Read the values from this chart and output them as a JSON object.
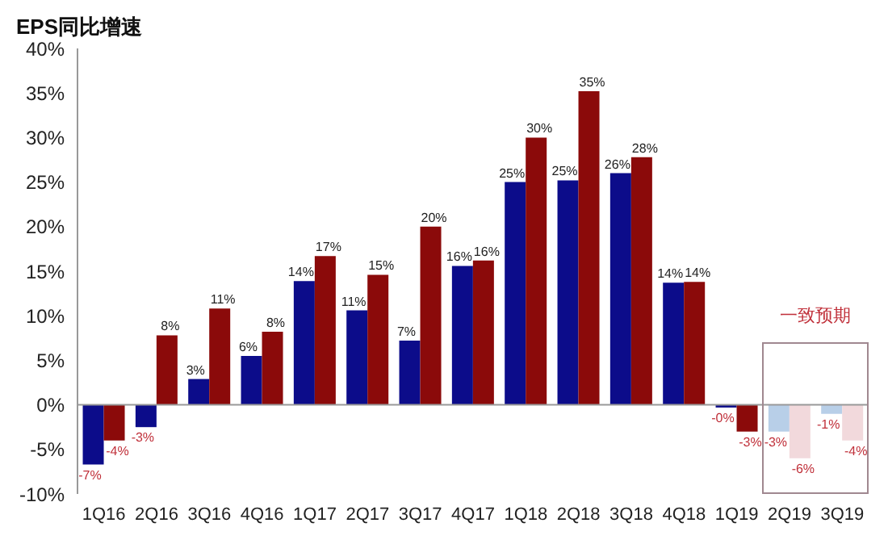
{
  "chart_data": {
    "type": "bar",
    "title": "EPS同比增速",
    "categories": [
      "1Q16",
      "2Q16",
      "3Q16",
      "4Q16",
      "1Q17",
      "2Q17",
      "3Q17",
      "4Q17",
      "1Q18",
      "2Q18",
      "3Q18",
      "4Q18",
      "1Q19",
      "2Q19",
      "3Q19"
    ],
    "series": [
      {
        "colors": [
          "#0c0c8a",
          "#0c0c8a",
          "#0c0c8a",
          "#0c0c8a",
          "#0c0c8a",
          "#0c0c8a",
          "#0c0c8a",
          "#0c0c8a",
          "#0c0c8a",
          "#0c0c8a",
          "#0c0c8a",
          "#0c0c8a",
          "#0c0c8a",
          "#b8cfe8",
          "#b8cfe8"
        ],
        "values": [
          -6.7,
          -2.5,
          2.9,
          5.5,
          13.9,
          10.6,
          7.2,
          15.6,
          25,
          25.2,
          26,
          13.7,
          -0.3,
          -3,
          -1
        ],
        "value_labels": [
          "-7%",
          "-3%",
          "3%",
          "6%",
          "14%",
          "11%",
          "7%",
          "16%",
          "25%",
          "25%",
          "26%",
          "14%",
          "-0%",
          "-3%",
          "-1%"
        ]
      },
      {
        "colors": [
          "#8b0a0a",
          "#8b0a0a",
          "#8b0a0a",
          "#8b0a0a",
          "#8b0a0a",
          "#8b0a0a",
          "#8b0a0a",
          "#8b0a0a",
          "#8b0a0a",
          "#8b0a0a",
          "#8b0a0a",
          "#8b0a0a",
          "#8b0a0a",
          "#f2d9dc",
          "#f2d9dc"
        ],
        "values": [
          -4,
          7.8,
          10.8,
          8.2,
          16.7,
          14.6,
          20,
          16.2,
          30,
          35.2,
          27.8,
          13.8,
          -3,
          -6,
          -4
        ],
        "value_labels": [
          "-4%",
          "8%",
          "11%",
          "8%",
          "17%",
          "15%",
          "20%",
          "16%",
          "30%",
          "35%",
          "28%",
          "14%",
          "-3%",
          "-6%",
          "-4%"
        ]
      }
    ],
    "ylim": [
      -10,
      40
    ],
    "yticks": [
      {
        "value": -10,
        "label": "-10%"
      },
      {
        "value": -5,
        "label": "-5%"
      },
      {
        "value": 0,
        "label": "0%"
      },
      {
        "value": 5,
        "label": "5%"
      },
      {
        "value": 10,
        "label": "10%"
      },
      {
        "value": 15,
        "label": "15%"
      },
      {
        "value": 20,
        "label": "20%"
      },
      {
        "value": 25,
        "label": "25%"
      },
      {
        "value": 30,
        "label": "30%"
      },
      {
        "value": 35,
        "label": "35%"
      },
      {
        "value": 40,
        "label": "40%"
      }
    ],
    "annotations": [
      "一致预期"
    ],
    "ref_lines": [
      {
        "axis": "y",
        "value": 0,
        "color": "#999999"
      }
    ],
    "grid": false,
    "legend": false
  }
}
